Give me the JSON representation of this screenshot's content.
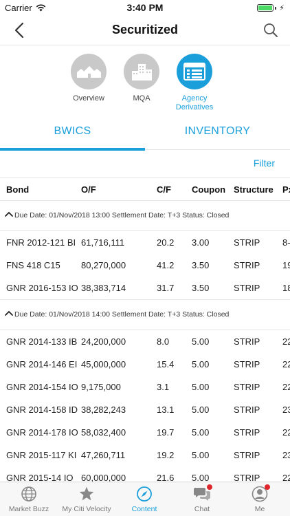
{
  "status_bar": {
    "carrier": "Carrier",
    "time": "3:40 PM",
    "battery_level": 1.0
  },
  "nav": {
    "title": "Securitized",
    "back_icon": "chevron-left-icon",
    "search_icon": "search-icon"
  },
  "categories": [
    {
      "label": "Overview",
      "icon": "houses-icon",
      "active": false
    },
    {
      "label": "MQA",
      "icon": "buildings-icon",
      "active": false
    },
    {
      "label": "Agency\nDerivatives",
      "icon": "grid-table-icon",
      "active": true
    }
  ],
  "tabs": [
    {
      "label": "BWICS",
      "active": true
    },
    {
      "label": "INVENTORY",
      "active": false
    }
  ],
  "filter_label": "Filter",
  "table": {
    "columns": [
      "Bond",
      "O/F",
      "C/F",
      "Coupon",
      "Structure",
      "Px"
    ],
    "groups": [
      {
        "header": "Due Date: 01/Nov/2018 13:00 Settlement Date: T+3 Status: Closed",
        "rows": [
          {
            "bond": "FNR 2012-121 BI",
            "of": "61,716,111",
            "cf": "20.2",
            "coupon": "3.00",
            "structure": "STRIP",
            "px": "8-"
          },
          {
            "bond": "FNS 418 C15",
            "of": "80,270,000",
            "cf": "41.2",
            "coupon": "3.50",
            "structure": "STRIP",
            "px": "19"
          },
          {
            "bond": "GNR 2016-153 IO",
            "of": "38,383,714",
            "cf": "31.7",
            "coupon": "3.50",
            "structure": "STRIP",
            "px": "18"
          }
        ]
      },
      {
        "header": "Due Date: 01/Nov/2018 14:00 Settlement Date: T+3 Status: Closed",
        "rows": [
          {
            "bond": "GNR 2014-133 IB",
            "of": "24,200,000",
            "cf": "8.0",
            "coupon": "5.00",
            "structure": "STRIP",
            "px": "22"
          },
          {
            "bond": "GNR 2014-146 EI",
            "of": "45,000,000",
            "cf": "15.4",
            "coupon": "5.00",
            "structure": "STRIP",
            "px": "22"
          },
          {
            "bond": "GNR 2014-154 IO",
            "of": "9,175,000",
            "cf": "3.1",
            "coupon": "5.00",
            "structure": "STRIP",
            "px": "22"
          },
          {
            "bond": "GNR 2014-158 ID",
            "of": "38,282,243",
            "cf": "13.1",
            "coupon": "5.00",
            "structure": "STRIP",
            "px": "23"
          },
          {
            "bond": "GNR 2014-178 IO",
            "of": "58,032,400",
            "cf": "19.7",
            "coupon": "5.00",
            "structure": "STRIP",
            "px": "22"
          },
          {
            "bond": "GNR 2015-117 KI",
            "of": "47,260,711",
            "cf": "19.2",
            "coupon": "5.00",
            "structure": "STRIP",
            "px": "23"
          },
          {
            "bond": "GNR 2015-14 IO",
            "of": "60,000,000",
            "cf": "21.6",
            "coupon": "5.00",
            "structure": "STRIP",
            "px": "22"
          }
        ]
      }
    ]
  },
  "tab_bar": [
    {
      "label": "Market Buzz",
      "icon": "globe-icon",
      "active": false,
      "badge": false
    },
    {
      "label": "My Citi Velocity",
      "icon": "star-icon",
      "active": false,
      "badge": false
    },
    {
      "label": "Content",
      "icon": "compass-icon",
      "active": true,
      "badge": false
    },
    {
      "label": "Chat",
      "icon": "chat-bubbles-icon",
      "active": false,
      "badge": true
    },
    {
      "label": "Me",
      "icon": "person-icon",
      "active": false,
      "badge": true
    }
  ],
  "colors": {
    "accent": "#1a9fdb",
    "inactive_circle": "#c9c9c9",
    "badge": "#e0262d"
  }
}
